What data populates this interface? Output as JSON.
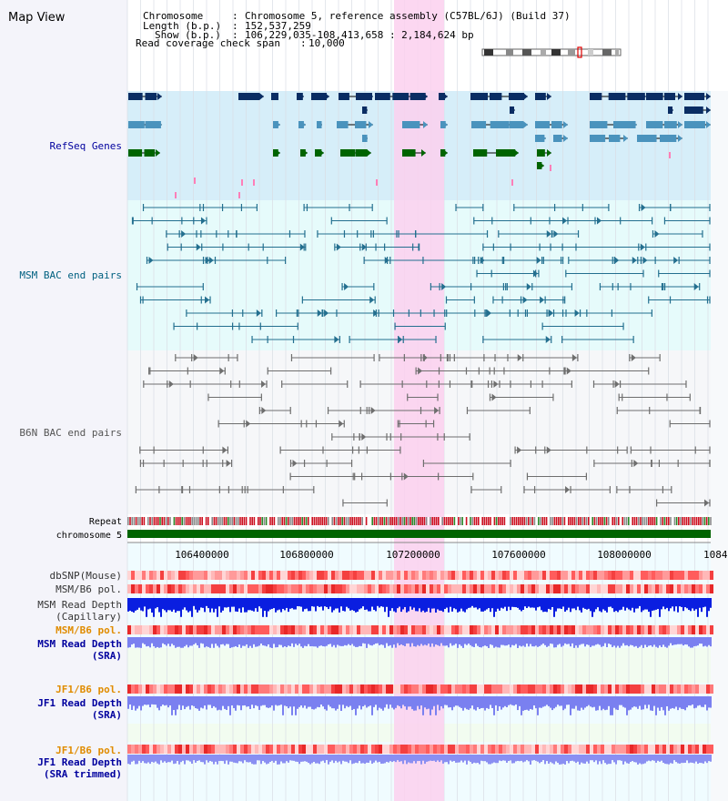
{
  "app_title": "Map View",
  "header": {
    "chromosome_label": "Chromosome",
    "chromosome_value": "Chromosome 5, reference assembly (C57BL/6J) (Build 37)",
    "length_label": "Length (b.p.)",
    "length_value": "152,537,259",
    "show_label": "Show (b.p.)",
    "show_value": "106,229,035-108,413,658 : 2,184,624 bp",
    "coverage_label": "Read coverage check span",
    "coverage_value": "10,000"
  },
  "tracks": {
    "refseq": "RefSeq Genes",
    "msm_bac": "MSM BAC end pairs",
    "b6n_bac": "B6N BAC end pairs",
    "repeat": "Repeat",
    "chromosome": "chromosome 5",
    "dbsnp": "dbSNP(Mouse)",
    "msm_b6_pol_1": "MSM/B6 pol.",
    "msm_depth_cap_1": "MSM Read Depth",
    "msm_depth_cap_2": "(Capillary)",
    "msm_b6_pol_2": "MSM/B6 pol.",
    "msm_depth_sra_1": "MSM Read Depth",
    "msm_depth_sra_2": "(SRA)",
    "jf1_b6_pol_1": "JF1/B6 pol.",
    "jf1_depth_sra_1": "JF1 Read Depth",
    "jf1_depth_sra_2": "(SRA)",
    "jf1_b6_pol_2": "JF1/B6 pol.",
    "jf1_depth_trim_1": "JF1 Read Depth",
    "jf1_depth_trim_2": "(SRA trimmed)"
  },
  "axis": {
    "ticks": [
      "106400000",
      "106800000",
      "107200000",
      "107600000",
      "108000000",
      "1084"
    ]
  },
  "colors": {
    "refseq_bg": "#d6eef9",
    "msm_bg": "#e6fbfb",
    "b6n_bg": "#f4f6f8",
    "highlight": "#fbd0ef",
    "gene_dark": "#0a2d63",
    "gene_mid": "#4a93bd",
    "gene_green": "#006400",
    "bac_msm": "#236f8f",
    "bac_b6n": "#6e6e6e",
    "chromosome_bar": "#006400",
    "depth_capillary": "#0a1ee0",
    "depth_sra": "#7a80f0",
    "label_blue": "#00009e",
    "label_teal": "#006080",
    "label_orange": "#e08c00"
  }
}
